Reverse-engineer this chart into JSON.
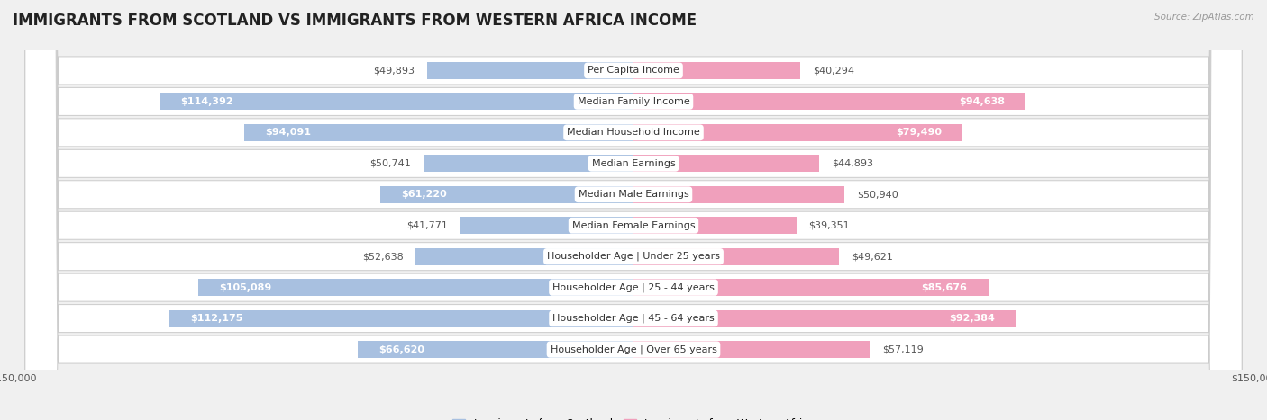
{
  "title": "IMMIGRANTS FROM SCOTLAND VS IMMIGRANTS FROM WESTERN AFRICA INCOME",
  "source": "Source: ZipAtlas.com",
  "categories": [
    "Per Capita Income",
    "Median Family Income",
    "Median Household Income",
    "Median Earnings",
    "Median Male Earnings",
    "Median Female Earnings",
    "Householder Age | Under 25 years",
    "Householder Age | 25 - 44 years",
    "Householder Age | 45 - 64 years",
    "Householder Age | Over 65 years"
  ],
  "scotland_values": [
    49893,
    114392,
    94091,
    50741,
    61220,
    41771,
    52638,
    105089,
    112175,
    66620
  ],
  "western_africa_values": [
    40294,
    94638,
    79490,
    44893,
    50940,
    39351,
    49621,
    85676,
    92384,
    57119
  ],
  "scotland_labels": [
    "$49,893",
    "$114,392",
    "$94,091",
    "$50,741",
    "$61,220",
    "$41,771",
    "$52,638",
    "$105,089",
    "$112,175",
    "$66,620"
  ],
  "western_africa_labels": [
    "$40,294",
    "$94,638",
    "$79,490",
    "$44,893",
    "$50,940",
    "$39,351",
    "$49,621",
    "$85,676",
    "$92,384",
    "$57,119"
  ],
  "scotland_color": "#a8c0e0",
  "western_africa_color": "#f0a0bc",
  "scotland_label_color_inside": "#ffffff",
  "western_africa_label_color_inside": "#ffffff",
  "label_color_outside": "#555555",
  "max_value": 150000,
  "background_color": "#f0f0f0",
  "row_bg_color": "#ffffff",
  "row_border_color": "#cccccc",
  "legend_scotland": "Immigrants from Scotland",
  "legend_western_africa": "Immigrants from Western Africa",
  "title_fontsize": 12,
  "label_fontsize": 8,
  "category_fontsize": 8,
  "axis_fontsize": 8,
  "inside_label_threshold": 60000
}
